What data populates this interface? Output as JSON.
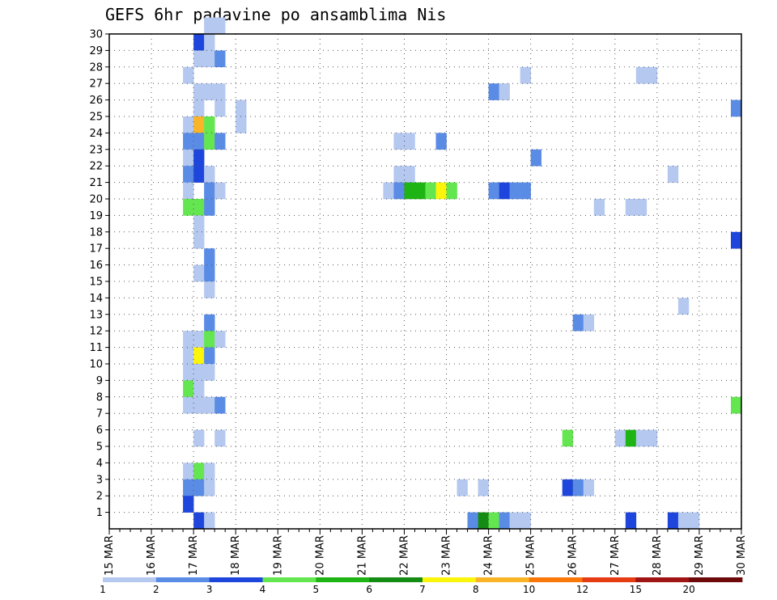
{
  "chart_data": {
    "type": "heatmap",
    "title": "GEFS 6hr padavine po ansamblima Nis",
    "x_labels": [
      "15 MAR",
      "16 MAR",
      "17 MAR",
      "18 MAR",
      "19 MAR",
      "20 MAR",
      "21 MAR",
      "22 MAR",
      "23 MAR",
      "24 MAR",
      "25 MAR",
      "26 MAR",
      "27 MAR",
      "28 MAR",
      "29 MAR",
      "30 MAR"
    ],
    "x_range": [
      "15 MAR 00Z",
      "30 MAR 00Z"
    ],
    "time_step_hours": 6,
    "y_labels": [
      "1",
      "2",
      "3",
      "4",
      "5",
      "6",
      "7",
      "8",
      "9",
      "10",
      "11",
      "12",
      "13",
      "14",
      "15",
      "16",
      "17",
      "18",
      "19",
      "20",
      "21",
      "22",
      "23",
      "24",
      "25",
      "26",
      "27",
      "28",
      "29",
      "30"
    ],
    "y_range": [
      0,
      30
    ],
    "grid": "dotted",
    "legend": {
      "position": "bottom",
      "labels": [
        "1",
        "2",
        "3",
        "4",
        "5",
        "6",
        "7",
        "8",
        "10",
        "12",
        "15",
        "20"
      ],
      "colors": [
        "#b4c8f0",
        "#5a8ce6",
        "#1e46dc",
        "#64e650",
        "#1eb414",
        "#148c14",
        "#faf50a",
        "#fab428",
        "#fa780a",
        "#e63c14",
        "#a01414",
        "#6e0a0a"
      ]
    },
    "cells": [
      {
        "m": 30,
        "s": 9,
        "c": 1
      },
      {
        "m": 30,
        "s": 10,
        "c": 1
      },
      {
        "m": 29,
        "s": 8,
        "c": 3
      },
      {
        "m": 29,
        "s": 9,
        "c": 1
      },
      {
        "m": 28,
        "s": 8,
        "c": 1
      },
      {
        "m": 28,
        "s": 9,
        "c": 1
      },
      {
        "m": 28,
        "s": 10,
        "c": 2
      },
      {
        "m": 27,
        "s": 7,
        "c": 1
      },
      {
        "m": 27,
        "s": 39,
        "c": 1
      },
      {
        "m": 27,
        "s": 50,
        "c": 1
      },
      {
        "m": 27,
        "s": 51,
        "c": 1
      },
      {
        "m": 26,
        "s": 8,
        "c": 1
      },
      {
        "m": 26,
        "s": 9,
        "c": 1
      },
      {
        "m": 26,
        "s": 10,
        "c": 1
      },
      {
        "m": 26,
        "s": 36,
        "c": 2
      },
      {
        "m": 26,
        "s": 37,
        "c": 1
      },
      {
        "m": 25,
        "s": 8,
        "c": 1
      },
      {
        "m": 25,
        "s": 10,
        "c": 1
      },
      {
        "m": 25,
        "s": 12,
        "c": 1
      },
      {
        "m": 25,
        "s": 59,
        "c": 2
      },
      {
        "m": 24,
        "s": 7,
        "c": 1
      },
      {
        "m": 24,
        "s": 8,
        "c": 8
      },
      {
        "m": 24,
        "s": 9,
        "c": 4
      },
      {
        "m": 24,
        "s": 12,
        "c": 1
      },
      {
        "m": 23,
        "s": 7,
        "c": 2
      },
      {
        "m": 23,
        "s": 8,
        "c": 2
      },
      {
        "m": 23,
        "s": 9,
        "c": 4
      },
      {
        "m": 23,
        "s": 10,
        "c": 2
      },
      {
        "m": 23,
        "s": 27,
        "c": 1
      },
      {
        "m": 23,
        "s": 28,
        "c": 1
      },
      {
        "m": 23,
        "s": 31,
        "c": 2
      },
      {
        "m": 22,
        "s": 7,
        "c": 1
      },
      {
        "m": 22,
        "s": 8,
        "c": 3
      },
      {
        "m": 22,
        "s": 40,
        "c": 2
      },
      {
        "m": 21,
        "s": 7,
        "c": 2
      },
      {
        "m": 21,
        "s": 8,
        "c": 3
      },
      {
        "m": 21,
        "s": 9,
        "c": 1
      },
      {
        "m": 21,
        "s": 27,
        "c": 1
      },
      {
        "m": 21,
        "s": 28,
        "c": 1
      },
      {
        "m": 21,
        "s": 53,
        "c": 1
      },
      {
        "m": 20,
        "s": 7,
        "c": 1
      },
      {
        "m": 20,
        "s": 9,
        "c": 2
      },
      {
        "m": 20,
        "s": 10,
        "c": 1
      },
      {
        "m": 20,
        "s": 26,
        "c": 1
      },
      {
        "m": 20,
        "s": 27,
        "c": 2
      },
      {
        "m": 20,
        "s": 28,
        "c": 5
      },
      {
        "m": 20,
        "s": 29,
        "c": 5
      },
      {
        "m": 20,
        "s": 30,
        "c": 4
      },
      {
        "m": 20,
        "s": 31,
        "c": 7
      },
      {
        "m": 20,
        "s": 32,
        "c": 4
      },
      {
        "m": 20,
        "s": 36,
        "c": 2
      },
      {
        "m": 20,
        "s": 37,
        "c": 3
      },
      {
        "m": 20,
        "s": 38,
        "c": 2
      },
      {
        "m": 20,
        "s": 39,
        "c": 2
      },
      {
        "m": 19,
        "s": 7,
        "c": 4
      },
      {
        "m": 19,
        "s": 8,
        "c": 4
      },
      {
        "m": 19,
        "s": 9,
        "c": 2
      },
      {
        "m": 19,
        "s": 46,
        "c": 1
      },
      {
        "m": 19,
        "s": 49,
        "c": 1
      },
      {
        "m": 19,
        "s": 50,
        "c": 1
      },
      {
        "m": 18,
        "s": 8,
        "c": 1
      },
      {
        "m": 17,
        "s": 8,
        "c": 1
      },
      {
        "m": 17,
        "s": 59,
        "c": 3
      },
      {
        "m": 16,
        "s": 9,
        "c": 2
      },
      {
        "m": 15,
        "s": 8,
        "c": 1
      },
      {
        "m": 15,
        "s": 9,
        "c": 2
      },
      {
        "m": 14,
        "s": 9,
        "c": 1
      },
      {
        "m": 13,
        "s": 54,
        "c": 1
      },
      {
        "m": 12,
        "s": 9,
        "c": 2
      },
      {
        "m": 12,
        "s": 44,
        "c": 2
      },
      {
        "m": 12,
        "s": 45,
        "c": 1
      },
      {
        "m": 11,
        "s": 7,
        "c": 1
      },
      {
        "m": 11,
        "s": 8,
        "c": 1
      },
      {
        "m": 11,
        "s": 9,
        "c": 4
      },
      {
        "m": 11,
        "s": 10,
        "c": 1
      },
      {
        "m": 10,
        "s": 7,
        "c": 1
      },
      {
        "m": 10,
        "s": 8,
        "c": 7
      },
      {
        "m": 10,
        "s": 9,
        "c": 2
      },
      {
        "m": 9,
        "s": 7,
        "c": 1
      },
      {
        "m": 9,
        "s": 8,
        "c": 1
      },
      {
        "m": 9,
        "s": 9,
        "c": 1
      },
      {
        "m": 8,
        "s": 7,
        "c": 4
      },
      {
        "m": 8,
        "s": 8,
        "c": 1
      },
      {
        "m": 7,
        "s": 7,
        "c": 1
      },
      {
        "m": 7,
        "s": 8,
        "c": 1
      },
      {
        "m": 7,
        "s": 9,
        "c": 1
      },
      {
        "m": 7,
        "s": 10,
        "c": 2
      },
      {
        "m": 7,
        "s": 59,
        "c": 4
      },
      {
        "m": 5,
        "s": 8,
        "c": 1
      },
      {
        "m": 5,
        "s": 10,
        "c": 1
      },
      {
        "m": 5,
        "s": 43,
        "c": 4
      },
      {
        "m": 5,
        "s": 48,
        "c": 1
      },
      {
        "m": 5,
        "s": 49,
        "c": 5
      },
      {
        "m": 5,
        "s": 50,
        "c": 1
      },
      {
        "m": 5,
        "s": 51,
        "c": 1
      },
      {
        "m": 3,
        "s": 7,
        "c": 1
      },
      {
        "m": 3,
        "s": 8,
        "c": 4
      },
      {
        "m": 3,
        "s": 9,
        "c": 1
      },
      {
        "m": 2,
        "s": 7,
        "c": 2
      },
      {
        "m": 2,
        "s": 8,
        "c": 2
      },
      {
        "m": 2,
        "s": 9,
        "c": 1
      },
      {
        "m": 2,
        "s": 33,
        "c": 1
      },
      {
        "m": 2,
        "s": 35,
        "c": 1
      },
      {
        "m": 2,
        "s": 43,
        "c": 3
      },
      {
        "m": 2,
        "s": 44,
        "c": 2
      },
      {
        "m": 2,
        "s": 45,
        "c": 1
      },
      {
        "m": 1,
        "s": 7,
        "c": 3
      },
      {
        "m": 0,
        "s": 8,
        "c": 3
      },
      {
        "m": 0,
        "s": 9,
        "c": 1
      },
      {
        "m": 0,
        "s": 34,
        "c": 2
      },
      {
        "m": 0,
        "s": 35,
        "c": 6
      },
      {
        "m": 0,
        "s": 36,
        "c": 4
      },
      {
        "m": 0,
        "s": 37,
        "c": 2
      },
      {
        "m": 0,
        "s": 38,
        "c": 1
      },
      {
        "m": 0,
        "s": 39,
        "c": 1
      },
      {
        "m": 0,
        "s": 49,
        "c": 3
      },
      {
        "m": 0,
        "s": 53,
        "c": 3
      },
      {
        "m": 0,
        "s": 54,
        "c": 1
      },
      {
        "m": 0,
        "s": 55,
        "c": 1
      }
    ]
  }
}
